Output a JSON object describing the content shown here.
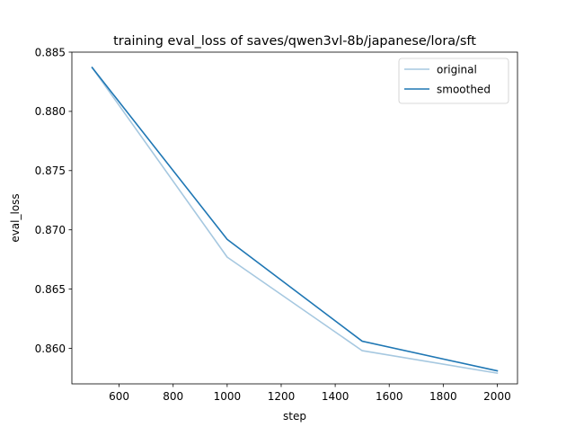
{
  "chart_data": {
    "type": "line",
    "title": "training eval_loss of saves/qwen3vl-8b/japanese/lora/sft",
    "xlabel": "step",
    "ylabel": "eval_loss",
    "xlim": [
      425,
      2075
    ],
    "ylim": [
      0.857,
      0.885
    ],
    "x_ticks": [
      600,
      800,
      1000,
      1200,
      1400,
      1600,
      1800,
      2000
    ],
    "x_tick_labels": [
      "600",
      "800",
      "1000",
      "1200",
      "1400",
      "1600",
      "1800",
      "2000"
    ],
    "y_ticks": [
      0.86,
      0.865,
      0.87,
      0.875,
      0.88,
      0.885
    ],
    "y_tick_labels": [
      "0.860",
      "0.865",
      "0.870",
      "0.875",
      "0.880",
      "0.885"
    ],
    "grid": false,
    "legend_position": "top-right",
    "x": [
      500,
      1000,
      1500,
      2000
    ],
    "series": [
      {
        "name": "original",
        "color": "#a6c8e0",
        "values": [
          0.8837,
          0.8677,
          0.8598,
          0.8579
        ]
      },
      {
        "name": "smoothed",
        "color": "#1f77b4",
        "values": [
          0.8837,
          0.8692,
          0.8606,
          0.8581
        ]
      }
    ]
  }
}
